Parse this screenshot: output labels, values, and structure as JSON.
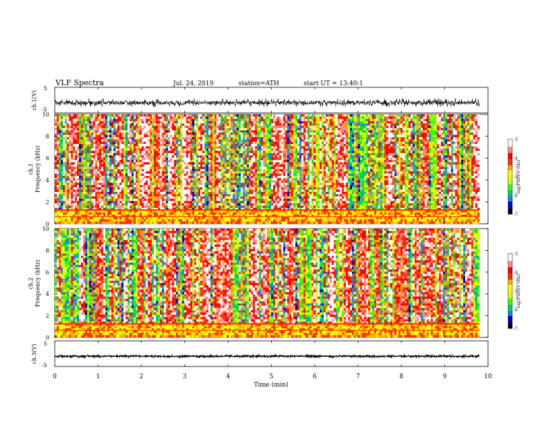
{
  "header": {
    "title": "VLF Spectra",
    "date": "Jul. 24, 2019",
    "station": "station=ATH",
    "start_ut": "start UT = 13:40:1"
  },
  "colors": {
    "colormap": [
      "#000000",
      "#0000cc",
      "#0088ff",
      "#00cc66",
      "#33ff00",
      "#ccff00",
      "#ffff00",
      "#ffaa00",
      "#ff3300",
      "#ff0000",
      "#ff8888",
      "#ffffff"
    ],
    "waveform": "#000000"
  },
  "chart_data": [
    {
      "type": "line",
      "panel": "ch1-waveform",
      "ylabel": "ch.1(V)",
      "ylim": [
        -5,
        5
      ],
      "ytick_labels": [
        "5",
        "-5"
      ],
      "xlim": [
        0,
        10
      ],
      "description_values": {
        "mean": -1.0,
        "amplitude_range": [
          -2.8,
          0.6
        ]
      }
    },
    {
      "type": "heatmap",
      "panel": "ch1-spectrogram",
      "ylabel": "Frequency (kHz)",
      "channel_label": "ch.1",
      "ylim": [
        0,
        10
      ],
      "ytick_labels": [
        "0",
        "2",
        "4",
        "6",
        "8",
        "10"
      ],
      "xlim": [
        0,
        10
      ],
      "colorbar": {
        "label": "log(PSD)(V²/Hz)",
        "range": [
          -7,
          -3
        ],
        "tick_labels": [
          "-3",
          "-4",
          "-5",
          "-6",
          "-7"
        ]
      }
    },
    {
      "type": "heatmap",
      "panel": "ch2-spectrogram",
      "ylabel": "Frequency (kHz)",
      "channel_label": "ch.2",
      "ylim": [
        0,
        10
      ],
      "ytick_labels": [
        "0",
        "2",
        "4",
        "6",
        "8",
        "10"
      ],
      "xlim": [
        0,
        10
      ],
      "colorbar": {
        "label": "log(PSD)(V²/Hz)",
        "range": [
          -7,
          -3
        ],
        "tick_labels": [
          "-3",
          "-4",
          "-5",
          "-6",
          "-7"
        ]
      }
    },
    {
      "type": "line",
      "panel": "ch3-waveform",
      "ylabel": "ch.3(V)",
      "ylim": [
        -5,
        5
      ],
      "ytick_labels": [
        "5",
        "-5"
      ],
      "xlim": [
        0,
        10
      ],
      "description_values": {
        "mean": -1.0,
        "amplitude_range": [
          -1.4,
          -0.6
        ]
      }
    }
  ],
  "xaxis": {
    "label": "Time (min)",
    "tick_labels": [
      "0",
      "1",
      "2",
      "3",
      "4",
      "5",
      "6",
      "7",
      "8",
      "9",
      "10"
    ],
    "data_end": 9.8
  }
}
